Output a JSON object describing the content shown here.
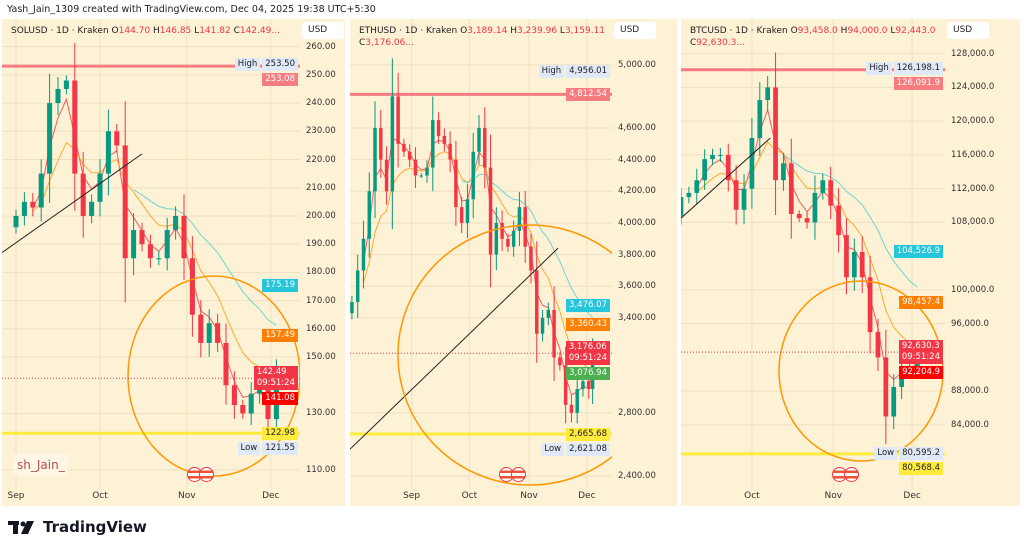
{
  "credit": "Yash_Jain_1309 created with TradingView.com, Dec 04, 2025 19:38 UTC+5:30",
  "brand": {
    "name": "TradingView",
    "icon": "tradingview-logo-icon"
  },
  "watermark": "sh_Jain_",
  "colors": {
    "up": "#089981",
    "down": "#f23645",
    "resistance": "#f77c80",
    "support": "#ffeb3b",
    "circle": "#ff9800",
    "ma_fast": "#f23645",
    "ma_mid": "#ff9800",
    "ma_slow": "#4dd0c8",
    "trendline": "#222222"
  },
  "chart_data": [
    {
      "type": "candlestick",
      "symbol": "SOLUSD · 1D · Kraken",
      "o": "144.70",
      "h": "146.85",
      "l": "141.82",
      "c": "142.49...",
      "currency": "USD",
      "ylim": [
        105,
        262
      ],
      "yticks": [
        "260.00",
        "250.00",
        "240.00",
        "230.00",
        "220.00",
        "210.00",
        "200.00",
        "190.00",
        "180.00",
        "170.00",
        "160.00",
        "150.00",
        "130.00",
        "110.00"
      ],
      "ytick_values": [
        260,
        250,
        240,
        230,
        220,
        210,
        200,
        190,
        180,
        170,
        160,
        150,
        130,
        110
      ],
      "months": [
        {
          "label": "Sep",
          "date": "2025-09-01"
        },
        {
          "label": "Oct",
          "date": "2025-10-01"
        },
        {
          "label": "Nov",
          "date": "2025-11-01"
        },
        {
          "label": "Dec",
          "date": "2025-12-01"
        }
      ],
      "xlim": [
        "2025-08-27",
        "2025-12-10"
      ],
      "closes": [
        [
          "2025-09-01",
          200
        ],
        [
          "2025-09-04",
          205
        ],
        [
          "2025-09-07",
          203
        ],
        [
          "2025-09-10",
          215
        ],
        [
          "2025-09-13",
          240
        ],
        [
          "2025-09-16",
          245
        ],
        [
          "2025-09-19",
          248
        ],
        [
          "2025-09-22",
          215
        ],
        [
          "2025-09-25",
          200
        ],
        [
          "2025-09-28",
          205
        ],
        [
          "2025-10-01",
          215
        ],
        [
          "2025-10-04",
          230
        ],
        [
          "2025-10-07",
          225
        ],
        [
          "2025-10-10",
          185
        ],
        [
          "2025-10-13",
          195
        ],
        [
          "2025-10-16",
          190
        ],
        [
          "2025-10-19",
          185
        ],
        [
          "2025-10-22",
          185
        ],
        [
          "2025-10-25",
          195
        ],
        [
          "2025-10-28",
          200
        ],
        [
          "2025-10-31",
          185
        ],
        [
          "2025-11-03",
          165
        ],
        [
          "2025-11-06",
          155
        ],
        [
          "2025-11-09",
          162
        ],
        [
          "2025-11-12",
          155
        ],
        [
          "2025-11-15",
          140
        ],
        [
          "2025-11-18",
          133
        ],
        [
          "2025-11-21",
          130
        ],
        [
          "2025-11-24",
          137
        ],
        [
          "2025-11-27",
          140
        ],
        [
          "2025-11-30",
          128
        ],
        [
          "2025-12-03",
          142.49
        ]
      ],
      "high": {
        "label": "High",
        "value": "253.50",
        "num": 253.5
      },
      "low": {
        "label": "Low",
        "value": "121.55",
        "num": 121.55
      },
      "resistance": {
        "value": "253.08",
        "num": 253.08
      },
      "support": {
        "value": "122.98",
        "num": 122.98
      },
      "ma_labels": [
        {
          "value": "175.19",
          "num": 175.19,
          "color": "#26c6da"
        },
        {
          "value": "157.49",
          "num": 157.49,
          "color": "#ff7f00"
        },
        {
          "value": "141.08",
          "num": 141.08,
          "color": "#ff0000"
        }
      ],
      "last": {
        "value": "142.49",
        "num": 142.49,
        "countdown": "09:51:24"
      },
      "trendline": [
        [
          "2025-08-27",
          187
        ],
        [
          "2025-10-16",
          222
        ]
      ]
    },
    {
      "type": "candlestick",
      "symbol": "ETHUSD · 1D · Kraken",
      "o": "3,189.14",
      "h": "3,239.96",
      "l": "3,159.11",
      "c": "3,176.06...",
      "currency": "USD",
      "ylim": [
        2350,
        5150
      ],
      "yticks": [
        "5,000.00",
        "4,600.00",
        "4,400.00",
        "4,200.00",
        "4,000.00",
        "3,800.00",
        "3,600.00",
        "3,400.00",
        "2,800.00",
        "2,400.00"
      ],
      "ytick_values": [
        5000,
        4600,
        4400,
        4200,
        4000,
        3800,
        3600,
        3400,
        2800,
        2400
      ],
      "months": [
        {
          "label": "Sep",
          "date": "2025-09-01"
        },
        {
          "label": "Oct",
          "date": "2025-10-01"
        },
        {
          "label": "Nov",
          "date": "2025-11-01"
        },
        {
          "label": "Dec",
          "date": "2025-12-01"
        }
      ],
      "xlim": [
        "2025-07-31",
        "2025-12-12"
      ],
      "closes": [
        [
          "2025-08-01",
          3500
        ],
        [
          "2025-08-04",
          3700
        ],
        [
          "2025-08-07",
          3900
        ],
        [
          "2025-08-10",
          4200
        ],
        [
          "2025-08-13",
          4600
        ],
        [
          "2025-08-16",
          4400
        ],
        [
          "2025-08-19",
          4200
        ],
        [
          "2025-08-22",
          4800
        ],
        [
          "2025-08-25",
          4500
        ],
        [
          "2025-08-28",
          4450
        ],
        [
          "2025-08-31",
          4400
        ],
        [
          "2025-09-03",
          4300
        ],
        [
          "2025-09-06",
          4300
        ],
        [
          "2025-09-09",
          4350
        ],
        [
          "2025-09-12",
          4650
        ],
        [
          "2025-09-15",
          4550
        ],
        [
          "2025-09-18",
          4500
        ],
        [
          "2025-09-21",
          4400
        ],
        [
          "2025-09-24",
          4100
        ],
        [
          "2025-09-27",
          4000
        ],
        [
          "2025-09-30",
          4150
        ],
        [
          "2025-10-03",
          4450
        ],
        [
          "2025-10-06",
          4600
        ],
        [
          "2025-10-09",
          4350
        ],
        [
          "2025-10-12",
          3800
        ],
        [
          "2025-10-15",
          4000
        ],
        [
          "2025-10-18",
          3900
        ],
        [
          "2025-10-21",
          3850
        ],
        [
          "2025-10-24",
          3950
        ],
        [
          "2025-10-27",
          4100
        ],
        [
          "2025-10-30",
          3850
        ],
        [
          "2025-11-02",
          3700
        ],
        [
          "2025-11-05",
          3300
        ],
        [
          "2025-11-08",
          3400
        ],
        [
          "2025-11-11",
          3450
        ],
        [
          "2025-11-14",
          3150
        ],
        [
          "2025-11-17",
          3100
        ],
        [
          "2025-11-20",
          2850
        ],
        [
          "2025-11-23",
          2800
        ],
        [
          "2025-11-26",
          2950
        ],
        [
          "2025-11-29",
          3000
        ],
        [
          "2025-12-02",
          2950
        ],
        [
          "2025-12-04",
          3176.06
        ]
      ],
      "high": {
        "label": "High",
        "value": "4,956.01",
        "num": 4956.01
      },
      "low": {
        "label": "Low",
        "value": "2,621.08",
        "num": 2621.08
      },
      "resistance": {
        "value": "4,812.54",
        "num": 4812.54
      },
      "support": {
        "value": "2,665.68",
        "num": 2665.68
      },
      "ma_labels": [
        {
          "value": "3,476.07",
          "num": 3476.07,
          "color": "#26c6da"
        },
        {
          "value": "3,360.43",
          "num": 3360.43,
          "color": "#ff7f00"
        },
        {
          "value": "3,076.94",
          "num": 3076.94,
          "color": "#4caf50"
        }
      ],
      "last": {
        "value": "3,176.06",
        "num": 3176.06,
        "countdown": "09:51:24"
      },
      "trendline": [
        [
          "2025-07-31",
          2570
        ],
        [
          "2025-11-16",
          3840
        ]
      ]
    },
    {
      "type": "candlestick",
      "symbol": "BTCUSD · 1D · Kraken",
      "o": "93,458.0",
      "h": "94,000.0",
      "l": "92,443.0",
      "c": "92,630.3...",
      "currency": "USD",
      "ylim": [
        77000,
        129500
      ],
      "yticks": [
        "128,000.0",
        "124,000.0",
        "120,000.0",
        "116,000.0",
        "112,000.0",
        "108,000.0",
        "100,000.0",
        "96,000.0",
        "88,000.0",
        "84,000.0"
      ],
      "ytick_values": [
        128000,
        124000,
        120000,
        116000,
        112000,
        108000,
        100000,
        96000,
        88000,
        84000
      ],
      "months": [
        {
          "label": "Oct",
          "date": "2025-10-01"
        },
        {
          "label": "Nov",
          "date": "2025-11-01"
        },
        {
          "label": "Dec",
          "date": "2025-12-01"
        }
      ],
      "xlim": [
        "2025-09-04",
        "2025-12-12"
      ],
      "closes": [
        [
          "2025-09-04",
          111000
        ],
        [
          "2025-09-07",
          111500
        ],
        [
          "2025-09-10",
          113000
        ],
        [
          "2025-09-13",
          115500
        ],
        [
          "2025-09-16",
          116000
        ],
        [
          "2025-09-19",
          116000
        ],
        [
          "2025-09-22",
          113000
        ],
        [
          "2025-09-25",
          109500
        ],
        [
          "2025-09-28",
          112000
        ],
        [
          "2025-10-01",
          118000
        ],
        [
          "2025-10-04",
          122500
        ],
        [
          "2025-10-07",
          124000
        ],
        [
          "2025-10-10",
          113000
        ],
        [
          "2025-10-13",
          115000
        ],
        [
          "2025-10-16",
          109000
        ],
        [
          "2025-10-19",
          108500
        ],
        [
          "2025-10-22",
          108000
        ],
        [
          "2025-10-25",
          111500
        ],
        [
          "2025-10-28",
          113000
        ],
        [
          "2025-10-31",
          110000
        ],
        [
          "2025-11-03",
          106500
        ],
        [
          "2025-11-06",
          101500
        ],
        [
          "2025-11-09",
          104500
        ],
        [
          "2025-11-12",
          101500
        ],
        [
          "2025-11-15",
          95000
        ],
        [
          "2025-11-18",
          92000
        ],
        [
          "2025-11-21",
          85000
        ],
        [
          "2025-11-24",
          88500
        ],
        [
          "2025-11-27",
          91000
        ],
        [
          "2025-11-30",
          90500
        ],
        [
          "2025-12-03",
          92630.3
        ]
      ],
      "high": {
        "label": "High",
        "value": "126,198.1",
        "num": 126198.1
      },
      "low": {
        "label": "Low",
        "value": "80,595.2",
        "num": 80595.2
      },
      "resistance": {
        "value": "126,091.9",
        "num": 126091.9
      },
      "support": {
        "value": "80,568.4",
        "num": 80568.4
      },
      "ma_labels": [
        {
          "value": "104,526.9",
          "num": 104526.9,
          "color": "#26c6da"
        },
        {
          "value": "98,457.4",
          "num": 98457.4,
          "color": "#ff7f00"
        },
        {
          "value": "92,204.9",
          "num": 92204.9,
          "color": "#ff0000"
        }
      ],
      "last": {
        "value": "92,630.3",
        "num": 92630.3,
        "countdown": "09:51:24"
      },
      "trendline": [
        [
          "2025-09-04",
          108500
        ],
        [
          "2025-10-08",
          118000
        ]
      ]
    }
  ]
}
